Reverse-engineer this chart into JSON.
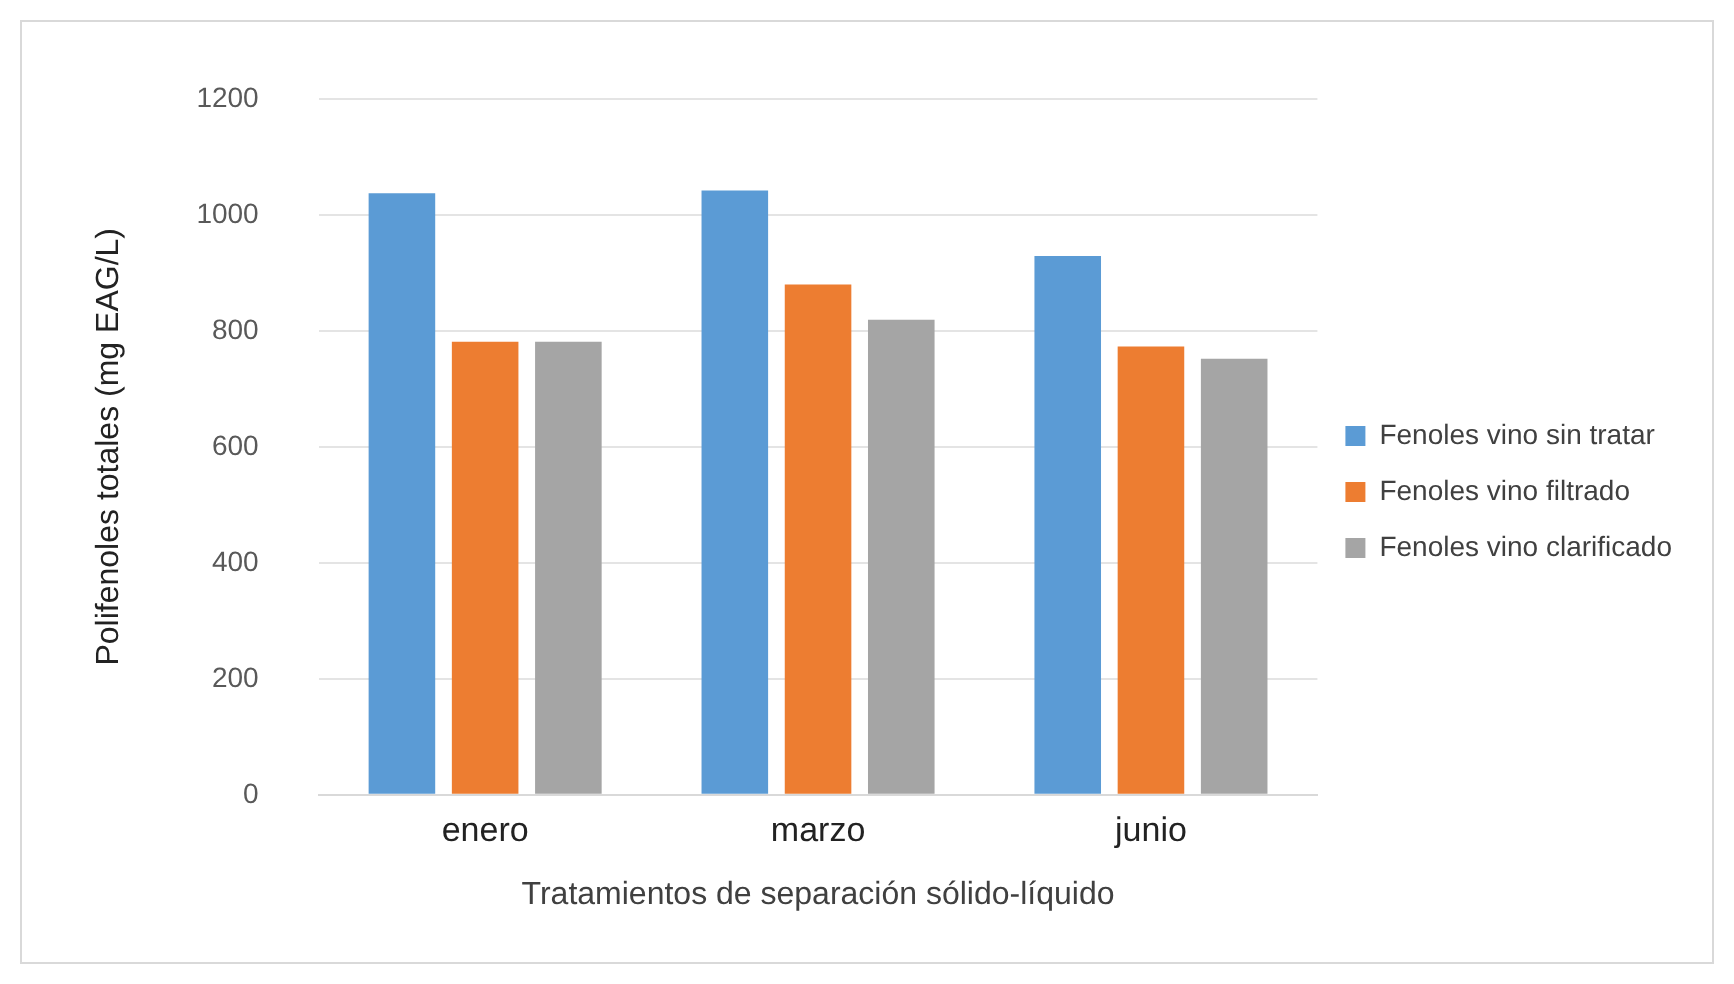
{
  "chart_data": {
    "type": "bar",
    "xlabel": "Tratamientos de separación sólido-líquido",
    "ylabel": "Polifenoles totales (mg EAG/L)",
    "categories": [
      "enero",
      "marzo",
      "junio"
    ],
    "series": [
      {
        "name": "Fenoles vino sin tratar",
        "color": "#5b9bd5",
        "values": [
          1037,
          1042,
          929
        ]
      },
      {
        "name": "Fenoles vino filtrado",
        "color": "#ed7d31",
        "values": [
          781,
          880,
          773
        ]
      },
      {
        "name": "Fenoles vino clarificado",
        "color": "#a5a5a5",
        "values": [
          781,
          819,
          752
        ]
      }
    ],
    "ylim": [
      0,
      1200
    ],
    "yticks": [
      0,
      200,
      400,
      600,
      800,
      1000,
      1200
    ],
    "grid": "y",
    "legend": "right"
  }
}
